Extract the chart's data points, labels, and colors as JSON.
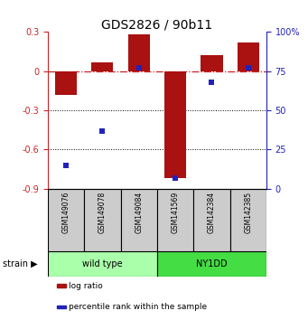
{
  "title": "GDS2826 / 90b11",
  "samples": [
    "GSM149076",
    "GSM149078",
    "GSM149084",
    "GSM141569",
    "GSM142384",
    "GSM142385"
  ],
  "log_ratios": [
    -0.18,
    0.07,
    0.28,
    -0.82,
    0.12,
    0.22
  ],
  "percentile_ranks": [
    15,
    37,
    77,
    7,
    68,
    77
  ],
  "ylim_left": [
    -0.9,
    0.3
  ],
  "ylim_right": [
    0,
    100
  ],
  "yticks_left": [
    -0.9,
    -0.6,
    -0.3,
    0.0,
    0.3
  ],
  "yticks_right": [
    0,
    25,
    50,
    75,
    100
  ],
  "ytick_labels_left": [
    "-0.9",
    "-0.6",
    "-0.3",
    "0",
    "0.3"
  ],
  "ytick_labels_right": [
    "0",
    "25",
    "50",
    "75",
    "100%"
  ],
  "bar_color": "#aa1111",
  "dot_color": "#2222bb",
  "hline_color": "#cc2222",
  "dotted_line_color": "#000000",
  "groups": [
    {
      "label": "wild type",
      "indices": [
        0,
        1,
        2
      ],
      "color": "#aaffaa"
    },
    {
      "label": "NY1DD",
      "indices": [
        3,
        4,
        5
      ],
      "color": "#44dd44"
    }
  ],
  "strain_label": "strain",
  "legend_items": [
    {
      "color": "#aa1111",
      "label": "log ratio"
    },
    {
      "color": "#2222bb",
      "label": "percentile rank within the sample"
    }
  ],
  "figsize": [
    3.41,
    3.54
  ],
  "dpi": 100
}
